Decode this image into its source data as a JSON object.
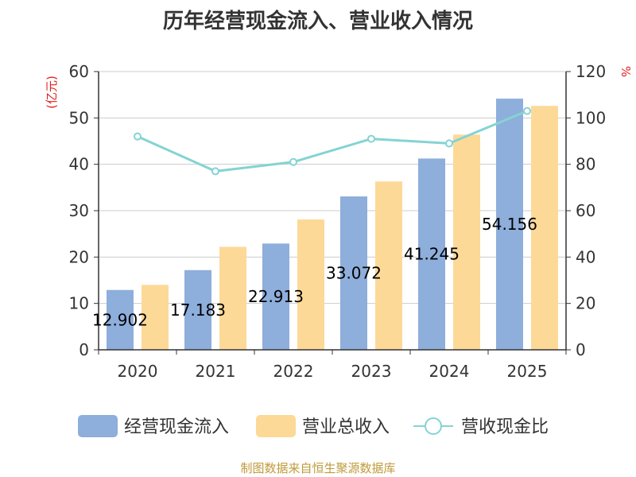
{
  "chart_data": {
    "type": "bar",
    "title": "历年经营现金流入、营业收入情况",
    "categories": [
      "2020",
      "2021",
      "2022",
      "2023",
      "2024",
      "2025"
    ],
    "series": [
      {
        "name": "经营现金流入",
        "kind": "bar",
        "axis": "left",
        "color": "#8eaedb",
        "values": [
          12.902,
          17.183,
          22.913,
          33.072,
          41.245,
          54.156
        ]
      },
      {
        "name": "营业总收入",
        "kind": "bar",
        "axis": "left",
        "color": "#fdd998",
        "values": [
          14.0,
          22.2,
          28.1,
          36.3,
          46.4,
          52.6
        ]
      },
      {
        "name": "营收现金比",
        "kind": "line",
        "axis": "right",
        "color": "#85d3d3",
        "values": [
          92,
          77,
          81,
          91,
          89,
          103
        ]
      }
    ],
    "data_labels": [
      "12.902",
      "17.183",
      "22.913",
      "33.072",
      "41.245",
      "54.156"
    ],
    "left_axis": {
      "label": "(亿元)",
      "min": 0,
      "max": 60,
      "ticks": [
        0,
        10,
        20,
        30,
        40,
        50,
        60
      ]
    },
    "right_axis": {
      "label": "%",
      "min": 0,
      "max": 120,
      "ticks": [
        0,
        20,
        40,
        60,
        80,
        100,
        120
      ]
    },
    "grid": true,
    "legend_position": "bottom"
  },
  "source_text": "制图数据来自恒生聚源数据库",
  "colors": {
    "axis_label": "#e02020",
    "source": "#c09a3a",
    "grid": "#cccccc",
    "axis": "#333333"
  }
}
